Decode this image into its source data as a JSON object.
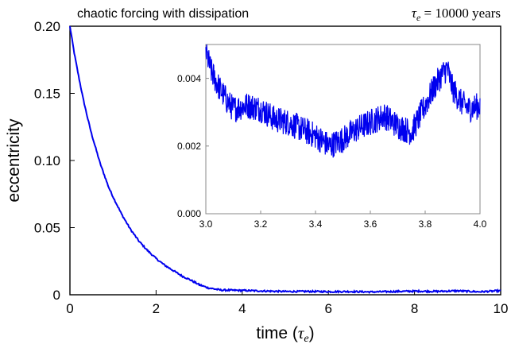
{
  "chart_data": [
    {
      "type": "line",
      "title": "chaotic forcing with dissipation",
      "annotation": "τe = 10000 years",
      "annotation_parts": {
        "symbol": "τ",
        "subscript": "e",
        "rest": " = 10000 years"
      },
      "xlabel": {
        "prefix": "time (",
        "symbol": "τ",
        "subscript": "e",
        "suffix": ")"
      },
      "ylabel": "eccentricity",
      "xlim": [
        0,
        10
      ],
      "ylim": [
        0,
        0.2
      ],
      "x_ticks": [
        0,
        2,
        4,
        6,
        8,
        10
      ],
      "x_tick_labels": [
        "0",
        "2",
        "4",
        "6",
        "8",
        "10"
      ],
      "y_ticks": [
        0,
        0.05,
        0.1,
        0.15,
        0.2
      ],
      "y_tick_labels": [
        "0",
        "0.05",
        "0.10",
        "0.15",
        "0.20"
      ],
      "grid": false,
      "color": "#0000ee",
      "series": [
        {
          "x": [
            0,
            0.1,
            0.2,
            0.3,
            0.4,
            0.5,
            0.6,
            0.7,
            0.8,
            0.9,
            1.0,
            1.2,
            1.4,
            1.6,
            1.8,
            2.0,
            2.2,
            2.4,
            2.6,
            2.8,
            3.0,
            3.2,
            3.5,
            4.0,
            4.5,
            5.0,
            5.5,
            6.0,
            6.5,
            7.0,
            7.5,
            8.0,
            8.5,
            9.0,
            9.5,
            10.0
          ],
          "values": [
            0.2,
            0.18,
            0.163,
            0.147,
            0.133,
            0.12,
            0.109,
            0.098,
            0.089,
            0.08,
            0.073,
            0.06,
            0.049,
            0.04,
            0.033,
            0.027,
            0.022,
            0.018,
            0.014,
            0.011,
            0.0075,
            0.0052,
            0.0035,
            0.0032,
            0.0028,
            0.0024,
            0.0025,
            0.0023,
            0.0024,
            0.0021,
            0.0024,
            0.0027,
            0.0025,
            0.0029,
            0.0022,
            0.003
          ]
        }
      ]
    },
    {
      "type": "line",
      "title": "",
      "xlim": [
        3.0,
        4.0
      ],
      "ylim": [
        0,
        0.005
      ],
      "x_ticks": [
        3.0,
        3.2,
        3.4,
        3.6,
        3.8,
        4.0
      ],
      "x_tick_labels": [
        "3.0",
        "3.2",
        "3.4",
        "3.6",
        "3.8",
        "4.0"
      ],
      "y_ticks": [
        0,
        0.002,
        0.004
      ],
      "y_tick_labels": [
        "0.000",
        "0.002",
        "0.004"
      ],
      "grid": false,
      "color": "#0000ee",
      "series": [
        {
          "x": [
            3.0,
            3.02,
            3.05,
            3.08,
            3.1,
            3.15,
            3.2,
            3.25,
            3.3,
            3.35,
            3.4,
            3.45,
            3.5,
            3.55,
            3.6,
            3.65,
            3.7,
            3.75,
            3.8,
            3.83,
            3.86,
            3.88,
            3.9,
            3.93,
            3.96,
            4.0
          ],
          "values": [
            0.0048,
            0.0042,
            0.0037,
            0.0033,
            0.0031,
            0.0032,
            0.0031,
            0.0028,
            0.0027,
            0.0025,
            0.0023,
            0.002,
            0.0022,
            0.0025,
            0.0027,
            0.0029,
            0.0026,
            0.0024,
            0.0032,
            0.0037,
            0.0041,
            0.0043,
            0.0037,
            0.0033,
            0.0031,
            0.0032
          ],
          "noise_amplitude": 0.0004
        }
      ]
    }
  ]
}
